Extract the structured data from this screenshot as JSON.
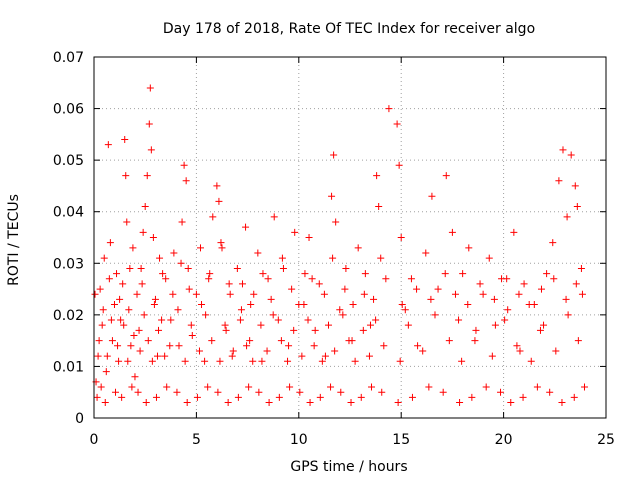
{
  "chart_data": {
    "type": "scatter",
    "title": "Day 178 of 2018, Rate Of TEC Index for receiver algo",
    "xlabel": "GPS time / hours",
    "ylabel": "ROTI / TECUs",
    "xlim": [
      0,
      25
    ],
    "ylim": [
      0,
      0.07
    ],
    "x_ticks": [
      0,
      5,
      10,
      15,
      20,
      25
    ],
    "y_ticks": [
      0,
      0.01,
      0.02,
      0.03,
      0.04,
      0.05,
      0.06,
      0.07
    ],
    "x_tick_labels": [
      "0",
      "5",
      "10",
      "15",
      "20",
      "25"
    ],
    "y_tick_labels": [
      "0",
      "0.01",
      "0.02",
      "0.03",
      "0.04",
      "0.05",
      "0.06",
      "0.07"
    ],
    "grid": true,
    "marker": "plus",
    "color": "#ff0000",
    "series": [
      {
        "values": [
          [
            0.1,
            0.007
          ],
          [
            0.2,
            0.012
          ],
          [
            0.3,
            0.025
          ],
          [
            0.4,
            0.018
          ],
          [
            0.5,
            0.031
          ],
          [
            0.6,
            0.009
          ],
          [
            0.7,
            0.053
          ],
          [
            0.8,
            0.034
          ],
          [
            0.9,
            0.015
          ],
          [
            1.0,
            0.022
          ],
          [
            1.1,
            0.028
          ],
          [
            1.2,
            0.011
          ],
          [
            1.3,
            0.019
          ],
          [
            1.4,
            0.026
          ],
          [
            1.5,
            0.054
          ],
          [
            1.55,
            0.047
          ],
          [
            1.6,
            0.038
          ],
          [
            1.7,
            0.021
          ],
          [
            1.8,
            0.014
          ],
          [
            1.9,
            0.033
          ],
          [
            2.0,
            0.008
          ],
          [
            2.1,
            0.024
          ],
          [
            2.2,
            0.017
          ],
          [
            2.3,
            0.029
          ],
          [
            2.4,
            0.036
          ],
          [
            2.5,
            0.041
          ],
          [
            2.6,
            0.047
          ],
          [
            2.7,
            0.057
          ],
          [
            2.75,
            0.064
          ],
          [
            2.8,
            0.052
          ],
          [
            2.9,
            0.035
          ],
          [
            3.0,
            0.023
          ],
          [
            3.1,
            0.012
          ],
          [
            3.2,
            0.031
          ],
          [
            3.3,
            0.019
          ],
          [
            3.5,
            0.027
          ],
          [
            3.7,
            0.014
          ],
          [
            3.9,
            0.032
          ],
          [
            4.1,
            0.021
          ],
          [
            4.3,
            0.038
          ],
          [
            4.4,
            0.049
          ],
          [
            4.5,
            0.046
          ],
          [
            4.6,
            0.029
          ],
          [
            4.8,
            0.016
          ],
          [
            5.0,
            0.024
          ],
          [
            5.2,
            0.033
          ],
          [
            5.4,
            0.011
          ],
          [
            5.6,
            0.027
          ],
          [
            5.8,
            0.039
          ],
          [
            6.0,
            0.045
          ],
          [
            6.1,
            0.042
          ],
          [
            6.2,
            0.034
          ],
          [
            6.4,
            0.018
          ],
          [
            6.6,
            0.026
          ],
          [
            6.8,
            0.013
          ],
          [
            7.0,
            0.029
          ],
          [
            7.2,
            0.021
          ],
          [
            7.4,
            0.037
          ],
          [
            7.6,
            0.015
          ],
          [
            7.8,
            0.024
          ],
          [
            8.0,
            0.032
          ],
          [
            8.2,
            0.011
          ],
          [
            8.5,
            0.027
          ],
          [
            8.8,
            0.039
          ],
          [
            9.0,
            0.019
          ],
          [
            9.2,
            0.031
          ],
          [
            9.5,
            0.014
          ],
          [
            9.8,
            0.036
          ],
          [
            10.0,
            0.022
          ],
          [
            10.3,
            0.028
          ],
          [
            10.5,
            0.035
          ],
          [
            10.8,
            0.017
          ],
          [
            11.0,
            0.026
          ],
          [
            11.3,
            0.012
          ],
          [
            11.6,
            0.043
          ],
          [
            11.7,
            0.051
          ],
          [
            11.8,
            0.038
          ],
          [
            12.0,
            0.021
          ],
          [
            12.3,
            0.029
          ],
          [
            12.6,
            0.015
          ],
          [
            12.9,
            0.033
          ],
          [
            13.2,
            0.024
          ],
          [
            13.5,
            0.018
          ],
          [
            13.8,
            0.047
          ],
          [
            13.9,
            0.041
          ],
          [
            14.0,
            0.031
          ],
          [
            14.4,
            0.06
          ],
          [
            14.8,
            0.057
          ],
          [
            14.9,
            0.049
          ],
          [
            15.0,
            0.035
          ],
          [
            15.2,
            0.021
          ],
          [
            15.5,
            0.027
          ],
          [
            15.8,
            0.014
          ],
          [
            16.2,
            0.032
          ],
          [
            16.5,
            0.043
          ],
          [
            16.8,
            0.025
          ],
          [
            17.2,
            0.047
          ],
          [
            17.5,
            0.036
          ],
          [
            17.8,
            0.019
          ],
          [
            18.0,
            0.028
          ],
          [
            18.3,
            0.033
          ],
          [
            18.6,
            0.015
          ],
          [
            19.0,
            0.024
          ],
          [
            19.3,
            0.031
          ],
          [
            19.6,
            0.018
          ],
          [
            19.9,
            0.027
          ],
          [
            20.2,
            0.021
          ],
          [
            20.5,
            0.036
          ],
          [
            20.8,
            0.013
          ],
          [
            21.0,
            0.026
          ],
          [
            21.5,
            0.022
          ],
          [
            21.8,
            0.017
          ],
          [
            22.1,
            0.028
          ],
          [
            22.4,
            0.034
          ],
          [
            22.7,
            0.046
          ],
          [
            22.9,
            0.052
          ],
          [
            23.1,
            0.039
          ],
          [
            23.3,
            0.051
          ],
          [
            23.5,
            0.045
          ],
          [
            23.6,
            0.041
          ],
          [
            23.8,
            0.029
          ],
          [
            0.15,
            0.004
          ],
          [
            0.35,
            0.006
          ],
          [
            0.55,
            0.003
          ],
          [
            1.05,
            0.005
          ],
          [
            1.35,
            0.004
          ],
          [
            1.85,
            0.006
          ],
          [
            2.15,
            0.005
          ],
          [
            2.55,
            0.003
          ],
          [
            3.05,
            0.004
          ],
          [
            3.55,
            0.006
          ],
          [
            4.05,
            0.005
          ],
          [
            4.55,
            0.003
          ],
          [
            5.05,
            0.004
          ],
          [
            5.55,
            0.006
          ],
          [
            6.05,
            0.005
          ],
          [
            6.55,
            0.003
          ],
          [
            7.05,
            0.004
          ],
          [
            7.55,
            0.006
          ],
          [
            8.05,
            0.005
          ],
          [
            8.55,
            0.003
          ],
          [
            9.05,
            0.004
          ],
          [
            9.55,
            0.006
          ],
          [
            10.05,
            0.005
          ],
          [
            10.55,
            0.003
          ],
          [
            11.05,
            0.004
          ],
          [
            11.55,
            0.006
          ],
          [
            12.05,
            0.005
          ],
          [
            12.55,
            0.003
          ],
          [
            13.05,
            0.004
          ],
          [
            13.55,
            0.006
          ],
          [
            14.05,
            0.005
          ],
          [
            14.85,
            0.003
          ],
          [
            15.55,
            0.004
          ],
          [
            16.35,
            0.006
          ],
          [
            17.05,
            0.005
          ],
          [
            17.85,
            0.003
          ],
          [
            18.45,
            0.004
          ],
          [
            19.15,
            0.006
          ],
          [
            19.85,
            0.005
          ],
          [
            20.35,
            0.003
          ],
          [
            20.95,
            0.004
          ],
          [
            21.65,
            0.006
          ],
          [
            22.25,
            0.005
          ],
          [
            22.85,
            0.003
          ],
          [
            23.45,
            0.004
          ],
          [
            23.95,
            0.006
          ],
          [
            0.25,
            0.015
          ],
          [
            0.45,
            0.021
          ],
          [
            0.65,
            0.012
          ],
          [
            0.85,
            0.019
          ],
          [
            1.15,
            0.014
          ],
          [
            1.45,
            0.018
          ],
          [
            1.65,
            0.011
          ],
          [
            1.95,
            0.016
          ],
          [
            2.25,
            0.013
          ],
          [
            2.45,
            0.02
          ],
          [
            2.65,
            0.015
          ],
          [
            2.85,
            0.011
          ],
          [
            3.15,
            0.017
          ],
          [
            3.45,
            0.012
          ],
          [
            3.75,
            0.019
          ],
          [
            4.15,
            0.014
          ],
          [
            4.45,
            0.011
          ],
          [
            4.75,
            0.018
          ],
          [
            5.15,
            0.013
          ],
          [
            5.45,
            0.02
          ],
          [
            5.75,
            0.015
          ],
          [
            6.15,
            0.011
          ],
          [
            6.45,
            0.017
          ],
          [
            6.75,
            0.012
          ],
          [
            7.15,
            0.019
          ],
          [
            7.45,
            0.014
          ],
          [
            7.75,
            0.011
          ],
          [
            8.15,
            0.018
          ],
          [
            8.45,
            0.013
          ],
          [
            8.75,
            0.02
          ],
          [
            9.15,
            0.015
          ],
          [
            9.45,
            0.011
          ],
          [
            9.75,
            0.017
          ],
          [
            10.15,
            0.012
          ],
          [
            10.45,
            0.019
          ],
          [
            10.75,
            0.014
          ],
          [
            11.15,
            0.011
          ],
          [
            11.45,
            0.018
          ],
          [
            11.75,
            0.013
          ],
          [
            12.15,
            0.02
          ],
          [
            12.45,
            0.015
          ],
          [
            12.75,
            0.011
          ],
          [
            13.15,
            0.017
          ],
          [
            13.45,
            0.012
          ],
          [
            13.75,
            0.019
          ],
          [
            14.15,
            0.014
          ],
          [
            14.95,
            0.011
          ],
          [
            15.35,
            0.018
          ],
          [
            16.05,
            0.013
          ],
          [
            16.65,
            0.02
          ],
          [
            17.35,
            0.015
          ],
          [
            17.95,
            0.011
          ],
          [
            18.65,
            0.017
          ],
          [
            19.45,
            0.012
          ],
          [
            20.05,
            0.019
          ],
          [
            20.65,
            0.014
          ],
          [
            21.35,
            0.011
          ],
          [
            21.95,
            0.018
          ],
          [
            22.55,
            0.013
          ],
          [
            23.15,
            0.02
          ],
          [
            23.65,
            0.015
          ],
          [
            0.05,
            0.024
          ],
          [
            0.75,
            0.027
          ],
          [
            1.25,
            0.023
          ],
          [
            1.75,
            0.029
          ],
          [
            2.35,
            0.026
          ],
          [
            2.95,
            0.022
          ],
          [
            3.35,
            0.028
          ],
          [
            3.85,
            0.024
          ],
          [
            4.25,
            0.03
          ],
          [
            4.65,
            0.025
          ],
          [
            5.25,
            0.022
          ],
          [
            5.65,
            0.028
          ],
          [
            6.25,
            0.033
          ],
          [
            6.65,
            0.024
          ],
          [
            7.25,
            0.026
          ],
          [
            7.65,
            0.022
          ],
          [
            8.25,
            0.028
          ],
          [
            8.65,
            0.023
          ],
          [
            9.25,
            0.029
          ],
          [
            9.65,
            0.025
          ],
          [
            10.25,
            0.022
          ],
          [
            10.65,
            0.027
          ],
          [
            11.25,
            0.024
          ],
          [
            11.65,
            0.031
          ],
          [
            12.25,
            0.025
          ],
          [
            12.65,
            0.022
          ],
          [
            13.25,
            0.028
          ],
          [
            13.65,
            0.023
          ],
          [
            14.25,
            0.027
          ],
          [
            15.05,
            0.022
          ],
          [
            15.75,
            0.025
          ],
          [
            16.45,
            0.023
          ],
          [
            17.15,
            0.028
          ],
          [
            17.65,
            0.024
          ],
          [
            18.25,
            0.022
          ],
          [
            18.85,
            0.026
          ],
          [
            19.55,
            0.023
          ],
          [
            20.15,
            0.027
          ],
          [
            20.75,
            0.024
          ],
          [
            21.25,
            0.022
          ],
          [
            21.85,
            0.025
          ],
          [
            22.45,
            0.027
          ],
          [
            23.05,
            0.023
          ],
          [
            23.55,
            0.026
          ],
          [
            23.85,
            0.024
          ]
        ]
      }
    ]
  }
}
